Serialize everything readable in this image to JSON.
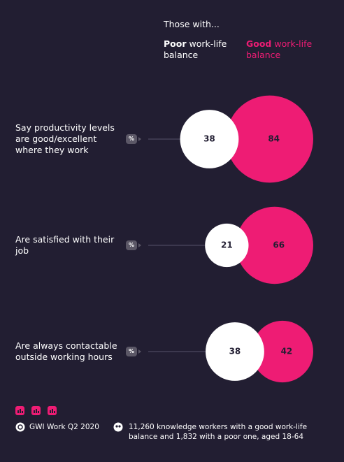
{
  "chart_data": {
    "type": "paired-bubble",
    "header": "Those with...",
    "categories": [
      "Say productivity levels are good/excellent where they work",
      "Are satisfied with their job",
      "Are always contactable outside working hours"
    ],
    "unit_badge": "%",
    "series": [
      {
        "name": "Poor work-life balance",
        "color": "#ffffff",
        "values": [
          38,
          21,
          38
        ]
      },
      {
        "name": "Good work-life balance",
        "color": "#ee1c74",
        "values": [
          84,
          66,
          42
        ]
      }
    ],
    "source": "GWI Work Q2 2020",
    "note": "11,260 knowledge workers with a good work-life balance and 1,832 with a poor one, aged 18-64"
  }
}
